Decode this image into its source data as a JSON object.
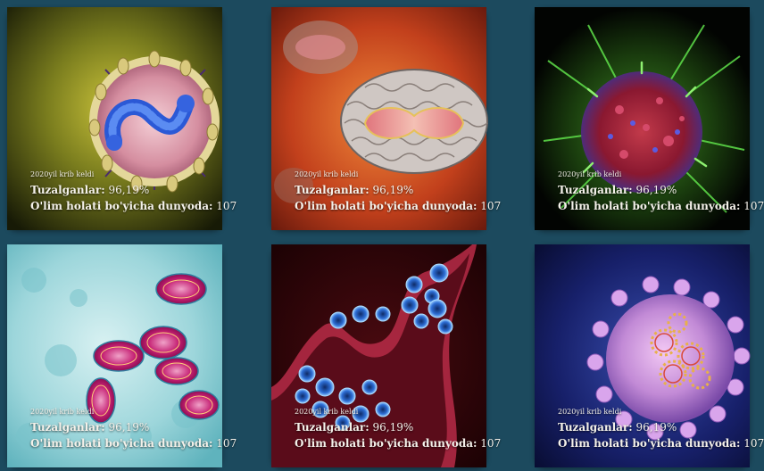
{
  "cards": [
    {
      "image": "virus-illustration-yellow",
      "note": "2020yil krib keldi",
      "infected_label": "Tuzalganlar:",
      "infected_value": "96,19%",
      "deaths_label": "O'lim holati bo'yicha dunyoda:",
      "deaths_value": "107"
    },
    {
      "image": "virus-illustration-orange",
      "note": "2020yil krib keldi",
      "infected_label": "Tuzalganlar:",
      "infected_value": "96,19%",
      "deaths_label": "O'lim holati bo'yicha dunyoda:",
      "deaths_value": "107"
    },
    {
      "image": "virus-illustration-green-red",
      "note": "2020yil krib keldi",
      "infected_label": "Tuzalganlar:",
      "infected_value": "96,19%",
      "deaths_label": "O'lim holati bo'yicha dunyoda:",
      "deaths_value": "107"
    },
    {
      "image": "virus-micrograph-cyan",
      "note": "2020yil krib keldi",
      "infected_label": "Tuzalganlar:",
      "infected_value": "96,19%",
      "deaths_label": "O'lim holati bo'yicha dunyoda:",
      "deaths_value": "107"
    },
    {
      "image": "virus-micrograph-red-blue",
      "note": "2020yil krib keldi",
      "infected_label": "Tuzalganlar:",
      "infected_value": "96,19%",
      "deaths_label": "O'lim holati bo'yicha dunyoda:",
      "deaths_value": "107"
    },
    {
      "image": "virus-illustration-purple",
      "note": "2020yil krib keldi",
      "infected_label": "Tuzalganlar:",
      "infected_value": "96,19%",
      "deaths_label": "O'lim holati bo'yicha dunyoda:",
      "deaths_value": "107"
    }
  ],
  "colors": {
    "background": "#1c4a5e",
    "text": "#f4f1ea"
  }
}
